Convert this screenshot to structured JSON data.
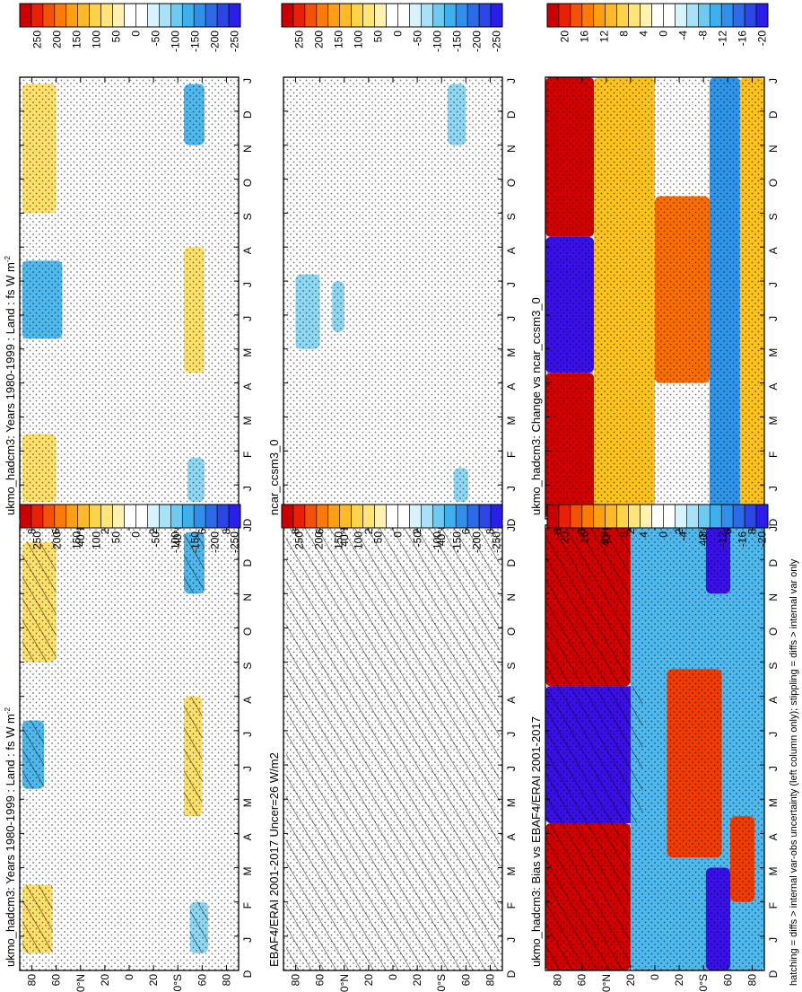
{
  "figure": {
    "footnote": "hatching = diffs > internal var-obs uncertainty (left column only); stippling = diffs > internal var only"
  },
  "chart_data": [
    {
      "id": "model_left",
      "type": "heatmap",
      "title": "ukmo_hadcm3: Years 1980-1999 : Land : fs W m",
      "title_superscript": "-2",
      "x_ticks": [
        "D",
        "J",
        "F",
        "M",
        "A",
        "M",
        "J",
        "J",
        "A",
        "S",
        "O",
        "N",
        "D",
        "J"
      ],
      "y_ticks": [
        "80",
        "60",
        "40",
        "20",
        "0",
        "20",
        "40",
        "60",
        "80"
      ],
      "y_ticks_suffix": [
        "",
        "",
        "N",
        "",
        "",
        "",
        "S",
        "",
        ""
      ],
      "y_range_deg_lat": [
        -90,
        90
      ],
      "colorbar": {
        "labels": [
          "250",
          "200",
          "150",
          "100",
          "50",
          "0",
          "-50",
          "-100",
          "-150",
          "-200",
          "-250"
        ]
      },
      "features": [
        {
          "lat_north_edge": 88,
          "lat_south_edge": 63,
          "month_start": 0.5,
          "month_end": 2.5,
          "value": 60,
          "hatched": true,
          "stippled": true
        },
        {
          "lat_north_edge": 88,
          "lat_south_edge": 70,
          "month_start": 5.3,
          "month_end": 7.3,
          "value": -90,
          "hatched": true,
          "stippled": true
        },
        {
          "lat_north_edge": 88,
          "lat_south_edge": 60,
          "month_start": 9.0,
          "month_end": 12.5,
          "value": 60,
          "hatched": true,
          "stippled": true
        },
        {
          "lat_north_edge": -45,
          "lat_south_edge": -60,
          "month_start": 4.5,
          "month_end": 8.0,
          "value": 60,
          "hatched": true,
          "stippled": true
        },
        {
          "lat_north_edge": -50,
          "lat_south_edge": -65,
          "month_start": 0.5,
          "month_end": 2.0,
          "value": -70,
          "hatched": true,
          "stippled": true
        },
        {
          "lat_north_edge": -45,
          "lat_south_edge": -62,
          "month_start": 11.0,
          "month_end": 12.8,
          "value": -90,
          "hatched": true,
          "stippled": true
        }
      ]
    },
    {
      "id": "model_right",
      "type": "heatmap",
      "title": "ukmo_hadcm3: Years 1980-1999 : Land : fs W m",
      "title_superscript": "-2",
      "x_ticks": [
        "D",
        "J",
        "F",
        "M",
        "A",
        "M",
        "J",
        "J",
        "A",
        "S",
        "O",
        "N",
        "D",
        "J"
      ],
      "y_ticks": [
        "80",
        "60",
        "40",
        "20",
        "0",
        "20",
        "40",
        "60",
        "80"
      ],
      "y_ticks_suffix": [
        "",
        "",
        "N",
        "",
        "",
        "",
        "S",
        "",
        ""
      ],
      "y_range_deg_lat": [
        -90,
        90
      ],
      "colorbar": {
        "labels": [
          "250",
          "200",
          "150",
          "100",
          "50",
          "0",
          "-50",
          "-100",
          "-150",
          "-200",
          "-250"
        ]
      },
      "features": [
        {
          "lat_north_edge": 88,
          "lat_south_edge": 60,
          "month_start": 0.5,
          "month_end": 2.5,
          "value": 60,
          "hatched": false,
          "stippled": true
        },
        {
          "lat_north_edge": 88,
          "lat_south_edge": 55,
          "month_start": 5.3,
          "month_end": 7.6,
          "value": -90,
          "hatched": false,
          "stippled": true
        },
        {
          "lat_north_edge": 88,
          "lat_south_edge": 60,
          "month_start": 9.0,
          "month_end": 12.8,
          "value": 60,
          "hatched": false,
          "stippled": true
        },
        {
          "lat_north_edge": -45,
          "lat_south_edge": -62,
          "month_start": 4.3,
          "month_end": 8.0,
          "value": 60,
          "hatched": false,
          "stippled": true
        },
        {
          "lat_north_edge": -48,
          "lat_south_edge": -62,
          "month_start": 0.5,
          "month_end": 1.8,
          "value": -70,
          "hatched": false,
          "stippled": true
        },
        {
          "lat_north_edge": -45,
          "lat_south_edge": -62,
          "month_start": 11.0,
          "month_end": 12.8,
          "value": -90,
          "hatched": false,
          "stippled": true
        }
      ]
    },
    {
      "id": "obs",
      "type": "heatmap",
      "title": "EBAF4/ERAI 2001-2017 Uncer=26 W/m2",
      "x_ticks": [
        "D",
        "J",
        "F",
        "M",
        "A",
        "M",
        "J",
        "J",
        "A",
        "S",
        "O",
        "N",
        "D",
        "J"
      ],
      "y_ticks": [
        "80",
        "60",
        "40",
        "20",
        "0",
        "20",
        "40",
        "60",
        "80"
      ],
      "y_ticks_suffix": [
        "",
        "",
        "N",
        "",
        "",
        "",
        "S",
        "",
        ""
      ],
      "y_range_deg_lat": [
        -90,
        90
      ],
      "colorbar": {
        "labels": [
          "250",
          "200",
          "150",
          "100",
          "50",
          "0",
          "-50",
          "-100",
          "-150",
          "-200",
          "-250"
        ]
      },
      "features": [
        {
          "lat_north_edge": 88,
          "lat_south_edge": -88,
          "month_start": 0,
          "month_end": 13,
          "value": 0,
          "hatched": true,
          "stippled": true
        }
      ]
    },
    {
      "id": "ncar",
      "type": "heatmap",
      "title": "ncar_ccsm3_0",
      "x_ticks": [
        "D",
        "J",
        "F",
        "M",
        "A",
        "M",
        "J",
        "J",
        "A",
        "S",
        "O",
        "N",
        "D",
        "J"
      ],
      "y_ticks": [
        "80",
        "60",
        "40",
        "20",
        "0",
        "20",
        "40",
        "60",
        "80"
      ],
      "y_ticks_suffix": [
        "",
        "",
        "N",
        "",
        "",
        "",
        "S",
        "",
        ""
      ],
      "y_range_deg_lat": [
        -90,
        90
      ],
      "colorbar": {
        "labels": [
          "250",
          "200",
          "150",
          "100",
          "50",
          "0",
          "-50",
          "-100",
          "-150",
          "-200",
          "-250"
        ]
      },
      "features": [
        {
          "lat_north_edge": 80,
          "lat_south_edge": 60,
          "month_start": 5.0,
          "month_end": 7.2,
          "value": -70,
          "hatched": false,
          "stippled": true
        },
        {
          "lat_north_edge": 50,
          "lat_south_edge": 40,
          "month_start": 5.5,
          "month_end": 7.0,
          "value": -70,
          "hatched": false,
          "stippled": true
        },
        {
          "lat_north_edge": -50,
          "lat_south_edge": -62,
          "month_start": 0.5,
          "month_end": 1.5,
          "value": -70,
          "hatched": false,
          "stippled": true
        },
        {
          "lat_north_edge": -45,
          "lat_south_edge": -60,
          "month_start": 11.0,
          "month_end": 12.8,
          "value": -70,
          "hatched": false,
          "stippled": true
        }
      ]
    },
    {
      "id": "bias",
      "type": "heatmap",
      "title": "ukmo_hadcm3: Bias vs EBAF4/ERAI 2001-2017",
      "x_ticks": [
        "D",
        "J",
        "F",
        "M",
        "A",
        "M",
        "J",
        "J",
        "A",
        "S",
        "O",
        "N",
        "D",
        "J"
      ],
      "y_ticks": [
        "80",
        "60",
        "40",
        "20",
        "0",
        "20",
        "40",
        "60",
        "80"
      ],
      "y_ticks_suffix": [
        "",
        "",
        "N",
        "",
        "",
        "",
        "S",
        "",
        ""
      ],
      "y_range_deg_lat": [
        -90,
        90
      ],
      "colorbar": {
        "labels": [
          "20",
          "16",
          "12",
          "8",
          "4",
          "0",
          "-4",
          "-8",
          "-12",
          "-16",
          "-20"
        ]
      },
      "features": [
        {
          "lat_north_edge": 90,
          "lat_south_edge": 20,
          "month_start": 0,
          "month_end": 4.3,
          "value": 18,
          "hatched": true,
          "stippled": true
        },
        {
          "lat_north_edge": 90,
          "lat_south_edge": 10,
          "month_start": 4.3,
          "month_end": 8.3,
          "value": -20,
          "hatched": true,
          "stippled": true
        },
        {
          "lat_north_edge": 90,
          "lat_south_edge": 20,
          "month_start": 8.3,
          "month_end": 13,
          "value": 18,
          "hatched": true,
          "stippled": true
        },
        {
          "lat_north_edge": 20,
          "lat_south_edge": -90,
          "month_start": 0,
          "month_end": 13,
          "value": -8,
          "hatched": false,
          "stippled": true
        },
        {
          "lat_north_edge": -10,
          "lat_south_edge": -55,
          "month_start": 3.3,
          "month_end": 8.8,
          "value": 16,
          "hatched": false,
          "stippled": true
        },
        {
          "lat_north_edge": -62,
          "lat_south_edge": -82,
          "month_start": 2.0,
          "month_end": 4.5,
          "value": 16,
          "hatched": false,
          "stippled": true
        },
        {
          "lat_north_edge": -42,
          "lat_south_edge": -62,
          "month_start": 0,
          "month_end": 3.0,
          "value": -20,
          "hatched": false,
          "stippled": true
        },
        {
          "lat_north_edge": -42,
          "lat_south_edge": -62,
          "month_start": 11.0,
          "month_end": 13,
          "value": -20,
          "hatched": false,
          "stippled": true
        }
      ]
    },
    {
      "id": "change",
      "type": "heatmap",
      "title": "ukmo_hadcm3: Change vs ncar_ccsm3_0",
      "x_ticks": [
        "D",
        "J",
        "F",
        "M",
        "A",
        "M",
        "J",
        "J",
        "A",
        "S",
        "O",
        "N",
        "D",
        "J"
      ],
      "y_ticks": [
        "80",
        "60",
        "40",
        "20",
        "0",
        "20",
        "40",
        "60",
        "80"
      ],
      "y_ticks_suffix": [
        "",
        "",
        "N",
        "",
        "",
        "",
        "S",
        "",
        ""
      ],
      "y_range_deg_lat": [
        -90,
        90
      ],
      "colorbar": {
        "labels": [
          "20",
          "16",
          "12",
          "8",
          "4",
          "0",
          "-4",
          "-8",
          "-12",
          "-16",
          "-20"
        ]
      },
      "features": [
        {
          "lat_north_edge": 90,
          "lat_south_edge": 50,
          "month_start": 0,
          "month_end": 4.3,
          "value": 18,
          "hatched": false,
          "stippled": true
        },
        {
          "lat_north_edge": 90,
          "lat_south_edge": 50,
          "month_start": 4.3,
          "month_end": 8.3,
          "value": -18,
          "hatched": false,
          "stippled": true
        },
        {
          "lat_north_edge": 90,
          "lat_south_edge": 50,
          "month_start": 8.3,
          "month_end": 13,
          "value": 18,
          "hatched": false,
          "stippled": true
        },
        {
          "lat_north_edge": 50,
          "lat_south_edge": 0,
          "month_start": 0,
          "month_end": 13,
          "value": 6,
          "hatched": false,
          "stippled": true
        },
        {
          "lat_north_edge": 0,
          "lat_south_edge": -45,
          "month_start": 4.0,
          "month_end": 9.5,
          "value": 14,
          "hatched": false,
          "stippled": true
        },
        {
          "lat_north_edge": -45,
          "lat_south_edge": -70,
          "month_start": 0,
          "month_end": 13,
          "value": -10,
          "hatched": false,
          "stippled": true
        },
        {
          "lat_north_edge": -70,
          "lat_south_edge": -90,
          "month_start": 0,
          "month_end": 13,
          "value": 6,
          "hatched": false,
          "stippled": true
        }
      ]
    }
  ]
}
